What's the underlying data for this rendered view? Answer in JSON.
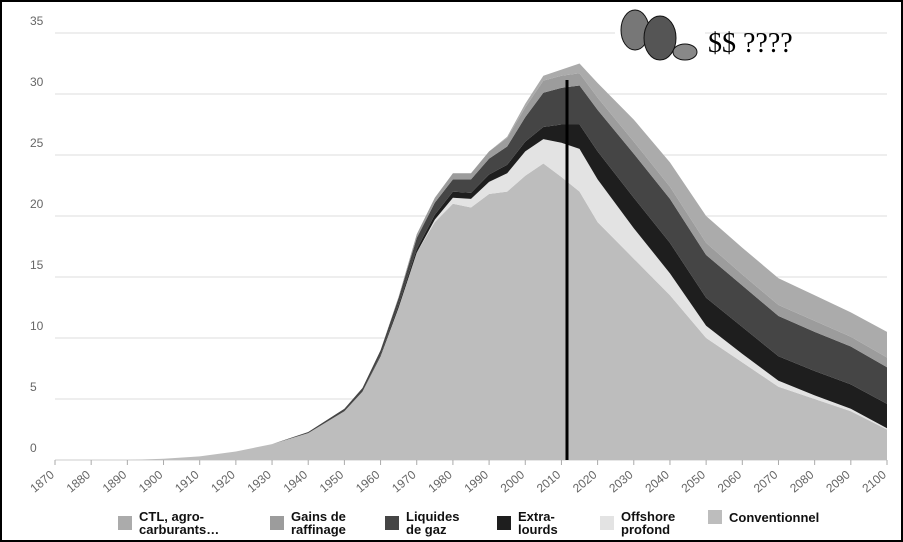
{
  "chart_data": {
    "type": "stacked-area",
    "annotation": "$$ ????",
    "x": [
      1870,
      1880,
      1890,
      1900,
      1910,
      1920,
      1930,
      1940,
      1950,
      1955,
      1960,
      1965,
      1970,
      1975,
      1980,
      1985,
      1990,
      1995,
      2000,
      2005,
      2010,
      2015,
      2020,
      2030,
      2040,
      2050,
      2060,
      2070,
      2080,
      2090,
      2100
    ],
    "xlim": [
      1870,
      2100
    ],
    "xticks": [
      1870,
      1880,
      1890,
      1900,
      1910,
      1920,
      1930,
      1940,
      1950,
      1960,
      1970,
      1980,
      1990,
      2000,
      2010,
      2020,
      2030,
      2040,
      2050,
      2060,
      2070,
      2080,
      2090,
      2100
    ],
    "ylim": [
      0,
      35
    ],
    "yticks": [
      0,
      5,
      10,
      15,
      20,
      25,
      30,
      35
    ],
    "grid": true,
    "series": [
      {
        "name": "Conventionnel",
        "color": "#bdbdbd",
        "values": [
          0,
          0,
          0,
          0.1,
          0.3,
          0.7,
          1.3,
          2.2,
          4,
          5.6,
          8.5,
          12.5,
          17,
          19.5,
          21,
          20.7,
          21.8,
          22,
          23.3,
          24.3,
          23.2,
          22,
          19.5,
          16.5,
          13.5,
          10,
          8,
          6,
          5,
          4,
          2.5
        ]
      },
      {
        "name": "Offshore\nprofond",
        "color": "#e3e3e3",
        "values": [
          0,
          0,
          0,
          0,
          0,
          0,
          0,
          0,
          0,
          0,
          0,
          0,
          0,
          0.2,
          0.5,
          0.7,
          1,
          1.5,
          2,
          2,
          2.8,
          3.5,
          3.5,
          2.5,
          1.8,
          1,
          0.7,
          0.5,
          0.3,
          0.2,
          0.1
        ]
      },
      {
        "name": "Extra-\nlourds",
        "color": "#1e1e1e",
        "values": [
          0,
          0,
          0,
          0,
          0,
          0,
          0,
          0,
          0,
          0,
          0.1,
          0.2,
          0.3,
          0.4,
          0.5,
          0.5,
          0.6,
          0.7,
          0.8,
          1,
          1.5,
          2,
          2.3,
          2.5,
          2.5,
          2.3,
          2.2,
          2,
          2,
          2,
          2
        ]
      },
      {
        "name": "Liquides\nde gaz",
        "color": "#454545",
        "values": [
          0,
          0,
          0,
          0,
          0,
          0,
          0,
          0.1,
          0.2,
          0.3,
          0.4,
          0.6,
          0.9,
          1,
          1,
          1.1,
          1.3,
          1.5,
          2,
          2.8,
          3,
          3.2,
          3.4,
          3.6,
          3.6,
          3.5,
          3.4,
          3.3,
          3.2,
          3.1,
          3
        ]
      },
      {
        "name": "Gains de\nraffinage",
        "color": "#9c9c9c",
        "values": [
          0,
          0,
          0,
          0,
          0,
          0,
          0,
          0,
          0,
          0,
          0,
          0.1,
          0.3,
          0.4,
          0.5,
          0.5,
          0.6,
          0.7,
          0.8,
          1,
          1,
          1,
          1,
          1,
          1,
          1,
          0.9,
          0.9,
          0.9,
          0.8,
          0.8
        ]
      },
      {
        "name": "CTL, agro-\ncarburants…",
        "color": "#ababab",
        "values": [
          0,
          0,
          0,
          0,
          0,
          0,
          0,
          0,
          0,
          0,
          0,
          0,
          0,
          0,
          0,
          0,
          0,
          0.1,
          0.3,
          0.4,
          0.5,
          0.8,
          1.2,
          1.8,
          2,
          2.2,
          2.2,
          2.2,
          2.1,
          2,
          2.1
        ]
      }
    ]
  }
}
